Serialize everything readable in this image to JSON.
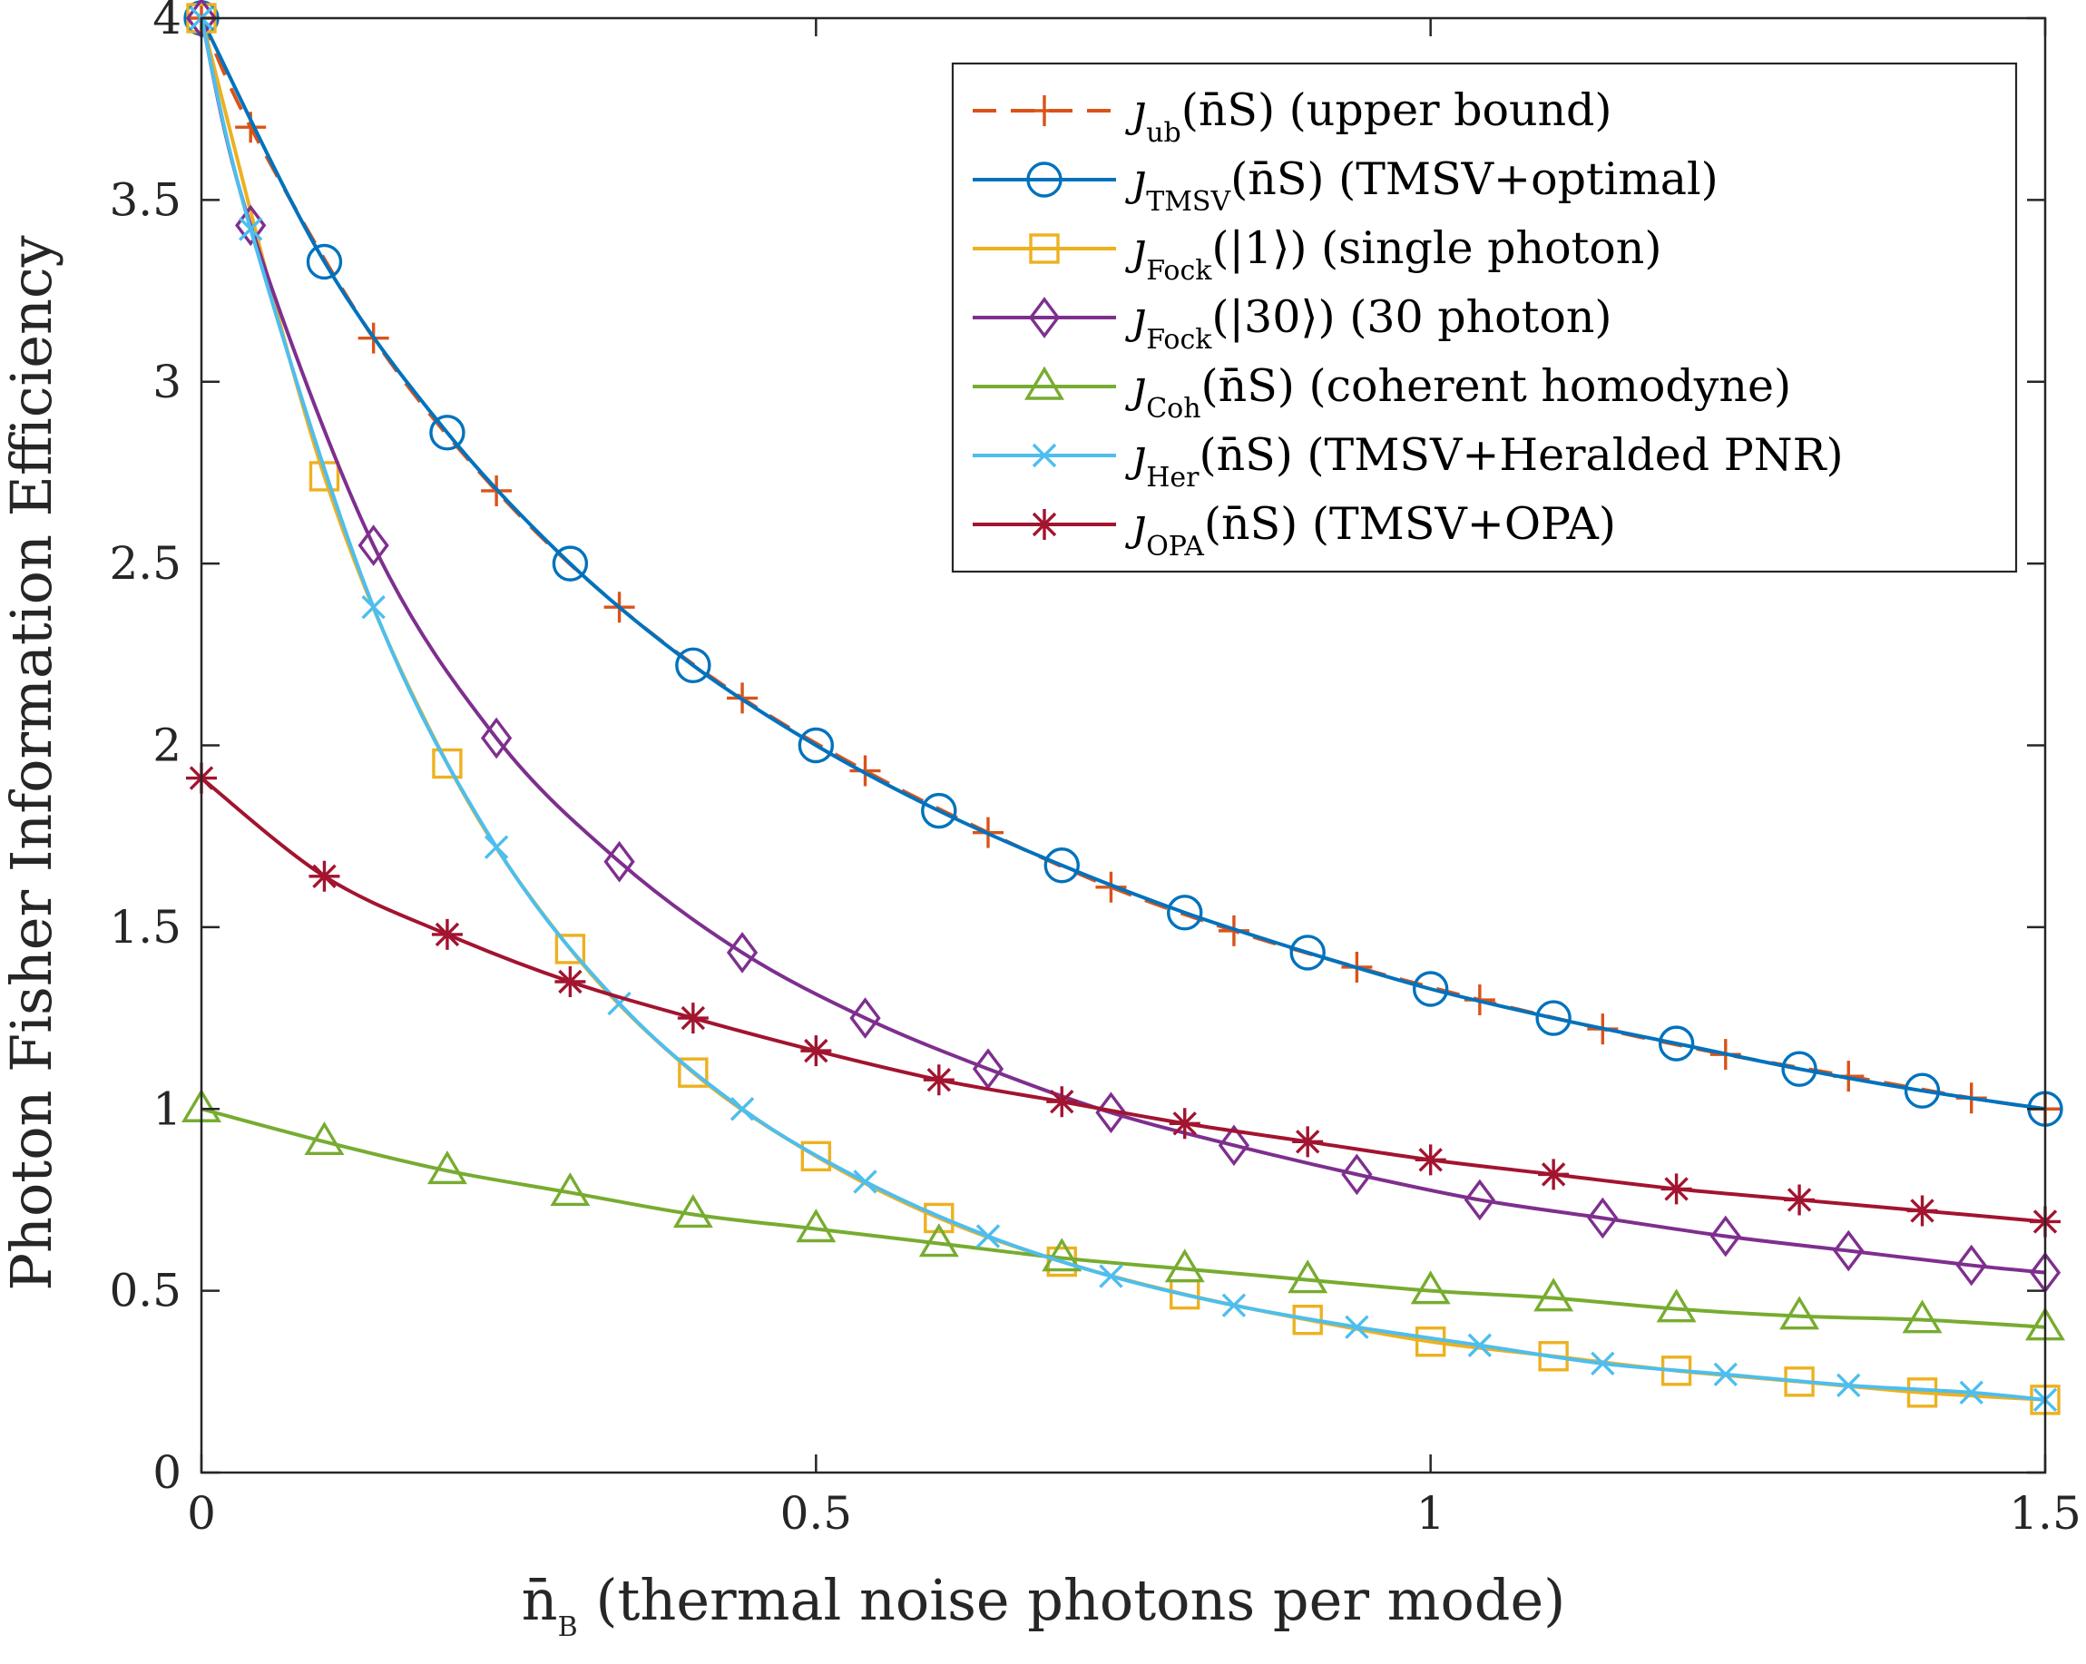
{
  "chart_data": {
    "type": "line",
    "title": "",
    "xlabel": "n̄B (thermal noise photons per mode)",
    "xlabel_parts": {
      "symbol": "n̄",
      "sub": "B",
      "rest": " (thermal noise photons per mode)"
    },
    "ylabel": "Photon Fisher Information Efficiency",
    "xlim": [
      0,
      1.5
    ],
    "ylim": [
      0,
      4
    ],
    "xticks": [
      0,
      0.5,
      1,
      1.5
    ],
    "xtick_labels": [
      "0",
      "0.5",
      "1",
      "1.5"
    ],
    "yticks": [
      0,
      0.5,
      1,
      1.5,
      2,
      2.5,
      3,
      3.5,
      4
    ],
    "ytick_labels": [
      "0",
      "0.5",
      "1",
      "1.5",
      "2",
      "2.5",
      "3",
      "3.5",
      "4"
    ],
    "grid": false,
    "legend_position": "top-right",
    "series": [
      {
        "name": "ub",
        "legend": {
          "symbol": "ȷ",
          "sub": "ub",
          "arg": "(n̄S)",
          "desc": " (upper bound)"
        },
        "color": "#D95319",
        "dash": true,
        "marker": "plus",
        "x": [
          0,
          0.04,
          0.14,
          0.24,
          0.34,
          0.44,
          0.54,
          0.64,
          0.74,
          0.84,
          0.94,
          1.04,
          1.14,
          1.24,
          1.34,
          1.44,
          1.5
        ],
        "y": [
          4.0,
          3.7,
          3.12,
          2.7,
          2.38,
          2.13,
          1.93,
          1.76,
          1.61,
          1.49,
          1.39,
          1.3,
          1.22,
          1.15,
          1.09,
          1.03,
          1.0
        ]
      },
      {
        "name": "TMSV",
        "legend": {
          "symbol": "ȷ",
          "sub": "TMSV",
          "arg": "(n̄S)",
          "desc": " (TMSV+optimal)"
        },
        "color": "#0072BD",
        "dash": false,
        "marker": "circle",
        "x": [
          0,
          0.1,
          0.2,
          0.3,
          0.4,
          0.5,
          0.6,
          0.7,
          0.8,
          0.9,
          1.0,
          1.1,
          1.2,
          1.3,
          1.4,
          1.5
        ],
        "y": [
          4.0,
          3.33,
          2.86,
          2.5,
          2.22,
          2.0,
          1.82,
          1.67,
          1.54,
          1.43,
          1.33,
          1.25,
          1.18,
          1.11,
          1.05,
          1.0
        ]
      },
      {
        "name": "Fock1",
        "legend": {
          "symbol": "ȷ",
          "sub": "Fock",
          "arg": "(|1⟩)",
          "desc": " (single photon)"
        },
        "color": "#EDB120",
        "dash": false,
        "marker": "square",
        "x": [
          0,
          0.1,
          0.2,
          0.3,
          0.4,
          0.5,
          0.6,
          0.7,
          0.8,
          0.9,
          1.0,
          1.1,
          1.2,
          1.3,
          1.4,
          1.5
        ],
        "y": [
          4.0,
          2.74,
          1.95,
          1.44,
          1.1,
          0.87,
          0.7,
          0.58,
          0.49,
          0.42,
          0.36,
          0.32,
          0.28,
          0.25,
          0.22,
          0.2
        ]
      },
      {
        "name": "Fock30",
        "legend": {
          "symbol": "ȷ",
          "sub": "Fock",
          "arg": "(|30⟩)",
          "desc": " (30 photon)"
        },
        "color": "#7E2F8E",
        "dash": false,
        "marker": "diamond",
        "x": [
          0,
          0.04,
          0.14,
          0.24,
          0.34,
          0.44,
          0.54,
          0.64,
          0.74,
          0.84,
          0.94,
          1.04,
          1.14,
          1.24,
          1.34,
          1.44,
          1.5
        ],
        "y": [
          4.0,
          3.43,
          2.55,
          2.02,
          1.68,
          1.43,
          1.25,
          1.11,
          0.99,
          0.9,
          0.82,
          0.75,
          0.7,
          0.65,
          0.61,
          0.57,
          0.55
        ]
      },
      {
        "name": "Coh",
        "legend": {
          "symbol": "ȷ",
          "sub": "Coh",
          "arg": "(n̄S)",
          "desc": " (coherent homodyne)"
        },
        "color": "#77AC30",
        "dash": false,
        "marker": "triangle",
        "x": [
          0,
          0.1,
          0.2,
          0.3,
          0.4,
          0.5,
          0.6,
          0.7,
          0.8,
          0.9,
          1.0,
          1.1,
          1.2,
          1.3,
          1.4,
          1.5
        ],
        "y": [
          1.0,
          0.91,
          0.83,
          0.77,
          0.71,
          0.67,
          0.63,
          0.59,
          0.56,
          0.53,
          0.5,
          0.48,
          0.45,
          0.43,
          0.42,
          0.4
        ]
      },
      {
        "name": "Her",
        "legend": {
          "symbol": "ȷ",
          "sub": "Her",
          "arg": "(n̄S)",
          "desc": " (TMSV+Heralded PNR)"
        },
        "color": "#4DBEEE",
        "dash": false,
        "marker": "x",
        "x": [
          0,
          0.04,
          0.14,
          0.24,
          0.34,
          0.44,
          0.54,
          0.64,
          0.74,
          0.84,
          0.94,
          1.04,
          1.14,
          1.24,
          1.34,
          1.44,
          1.5
        ],
        "y": [
          4.0,
          3.42,
          2.38,
          1.72,
          1.29,
          1.0,
          0.8,
          0.65,
          0.54,
          0.46,
          0.4,
          0.35,
          0.3,
          0.27,
          0.24,
          0.22,
          0.2
        ]
      },
      {
        "name": "OPA",
        "legend": {
          "symbol": "ȷ",
          "sub": "OPA",
          "arg": "(n̄S)",
          "desc": " (TMSV+OPA)"
        },
        "color": "#A2142F",
        "dash": false,
        "marker": "asterisk",
        "x": [
          0,
          0.1,
          0.2,
          0.3,
          0.4,
          0.5,
          0.6,
          0.7,
          0.8,
          0.9,
          1.0,
          1.1,
          1.2,
          1.3,
          1.4,
          1.5
        ],
        "y": [
          1.91,
          1.64,
          1.48,
          1.35,
          1.25,
          1.16,
          1.08,
          1.02,
          0.96,
          0.91,
          0.86,
          0.82,
          0.78,
          0.75,
          0.72,
          0.69
        ]
      }
    ]
  }
}
